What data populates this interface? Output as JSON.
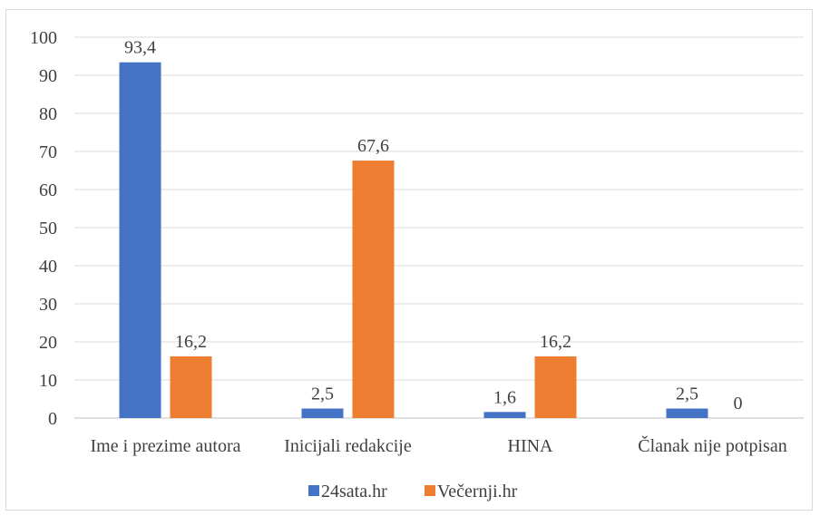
{
  "chart_data": {
    "type": "bar",
    "categories": [
      "Ime i prezime autora",
      "Inicijali redakcije",
      "HINA",
      "Članak nije potpisan"
    ],
    "series": [
      {
        "name": "24sata.hr",
        "color": "#4472c4",
        "values": [
          93.4,
          2.5,
          1.6,
          2.5
        ],
        "labels": [
          "93,4",
          "2,5",
          "1,6",
          "2,5"
        ]
      },
      {
        "name": "Večernji.hr",
        "color": "#ed7d31",
        "values": [
          16.2,
          67.6,
          16.2,
          0
        ],
        "labels": [
          "16,2",
          "67,6",
          "16,2",
          "0"
        ]
      }
    ],
    "yticks": [
      "0",
      "10",
      "20",
      "30",
      "40",
      "50",
      "60",
      "70",
      "80",
      "90",
      "100"
    ],
    "ylim": [
      0,
      100
    ],
    "grid": true,
    "legend": "bottom"
  }
}
